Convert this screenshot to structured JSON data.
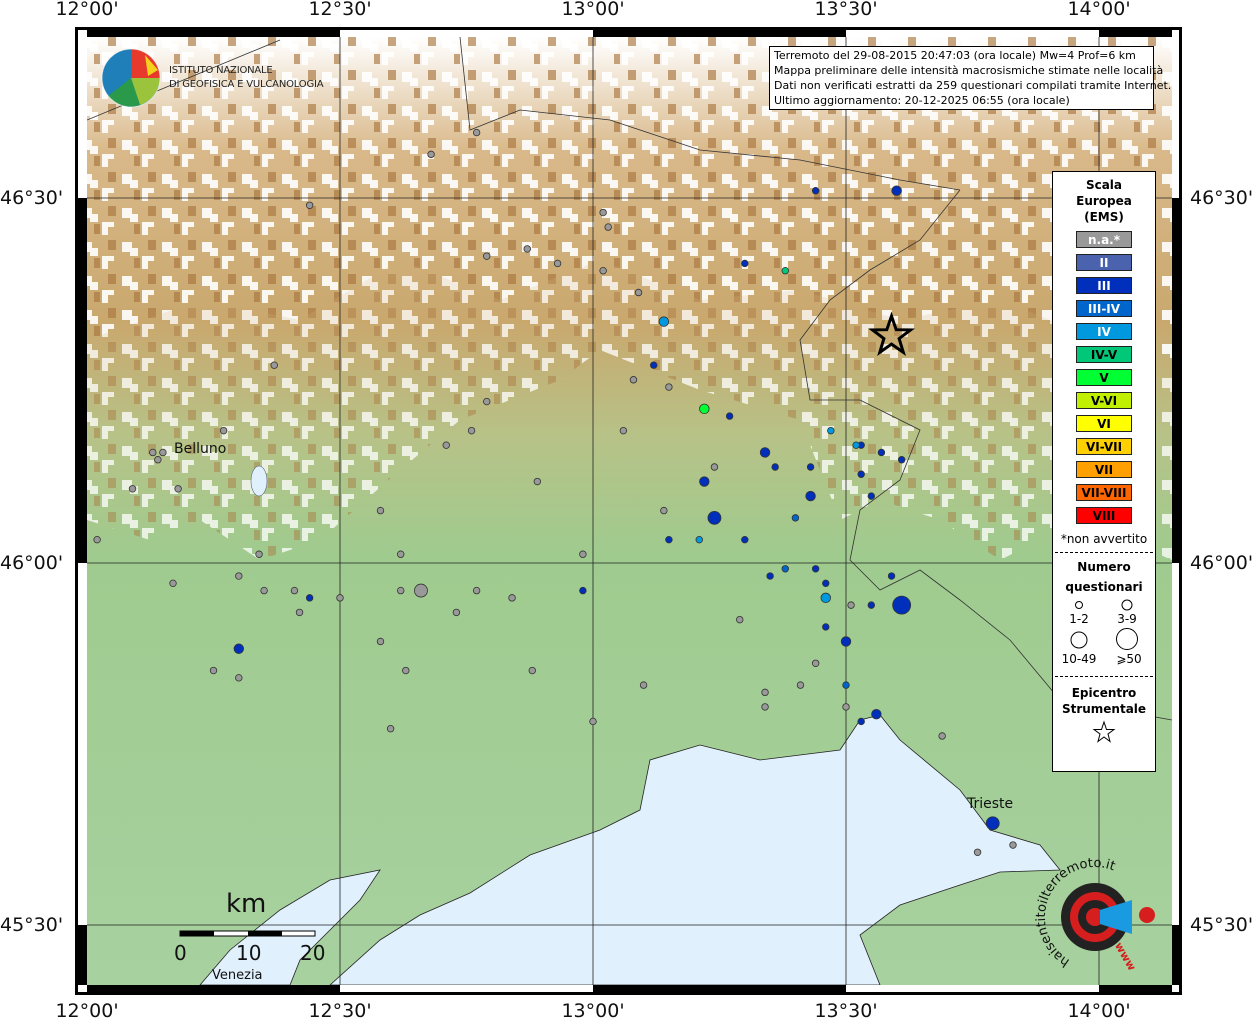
{
  "map": {
    "extent": {
      "lon": [
        12.0,
        14.14
      ],
      "lat": [
        45.42,
        46.72
      ]
    },
    "grid_lon": [
      "12°00'",
      "12°30'",
      "13°00'",
      "13°30'",
      "14°00'"
    ],
    "grid_lat": [
      "46°30'",
      "46°00'",
      "45°30'"
    ],
    "places": {
      "belluno": "Belluno",
      "trieste": "Trieste",
      "venezia": "Venezia"
    },
    "scale": {
      "unit": "km",
      "labels": [
        "0",
        "10",
        "20"
      ]
    },
    "colors": {
      "sea": "#e0f0fc",
      "plain": "#9ccc93",
      "mountain": "#c8a06a",
      "snow": "#ffffff"
    }
  },
  "logo": {
    "line1": "ISTITUTO NAZIONALE",
    "line2": "DI GEOFISICA E VULCANOLOGIA",
    "haisentito": "haisentitoilterremoto.it",
    "www": "www"
  },
  "info": {
    "line1": "Terremoto del 29-08-2015 20:47:03 (ora locale) Mw=4 Prof=6 km",
    "line2": "Mappa preliminare delle intensità macrosismiche stimate nelle località",
    "line3": "Dati non verificati estratti da 259 questionari compilati tramite Internet.",
    "line4": "Ultimo aggiornamento: 20-12-2025 06:55 (ora locale)"
  },
  "legend": {
    "title1": "Scala",
    "title2": "Europea",
    "title3": "(EMS)",
    "classes": [
      {
        "label": "n.a.*",
        "color": "#999999",
        "text": "#ffffff"
      },
      {
        "label": "II",
        "color": "#4b63ae",
        "text": "#ffffff"
      },
      {
        "label": "III",
        "color": "#0030bb",
        "text": "#ffffff"
      },
      {
        "label": "III-IV",
        "color": "#0066cc",
        "text": "#ffffff"
      },
      {
        "label": "IV",
        "color": "#0099e0",
        "text": "#ffffff"
      },
      {
        "label": "IV-V",
        "color": "#00c878",
        "text": "#000000"
      },
      {
        "label": "V",
        "color": "#00ff33",
        "text": "#000000"
      },
      {
        "label": "V-VI",
        "color": "#c0f000",
        "text": "#000000"
      },
      {
        "label": "VI",
        "color": "#ffff00",
        "text": "#000000"
      },
      {
        "label": "VI-VII",
        "color": "#ffd000",
        "text": "#000000"
      },
      {
        "label": "VII",
        "color": "#ffa000",
        "text": "#000000"
      },
      {
        "label": "VII-VIII",
        "color": "#ff6600",
        "text": "#000000"
      },
      {
        "label": "VIII",
        "color": "#ff0000",
        "text": "#000000"
      }
    ],
    "note": "*non avvertito",
    "count_title1": "Numero",
    "count_title2": "questionari",
    "sizes": [
      "1-2",
      "3-9",
      "10-49",
      "⩾50"
    ],
    "epi1": "Epicentro",
    "epi2": "Strumentale"
  },
  "epicenter": {
    "lon": 13.59,
    "lat": 46.31
  },
  "points": [
    {
      "lon": 12.77,
      "lat": 46.59,
      "i": "n.a.*",
      "s": 1
    },
    {
      "lon": 12.68,
      "lat": 46.56,
      "i": "n.a.*",
      "s": 1
    },
    {
      "lon": 12.44,
      "lat": 46.49,
      "i": "n.a.*",
      "s": 1
    },
    {
      "lon": 13.02,
      "lat": 46.48,
      "i": "n.a.*",
      "s": 1
    },
    {
      "lon": 13.03,
      "lat": 46.46,
      "i": "n.a.*",
      "s": 1
    },
    {
      "lon": 12.87,
      "lat": 46.43,
      "i": "n.a.*",
      "s": 1
    },
    {
      "lon": 12.79,
      "lat": 46.42,
      "i": "n.a.*",
      "s": 1
    },
    {
      "lon": 12.93,
      "lat": 46.41,
      "i": "n.a.*",
      "s": 1
    },
    {
      "lon": 13.02,
      "lat": 46.4,
      "i": "n.a.*",
      "s": 1
    },
    {
      "lon": 13.09,
      "lat": 46.37,
      "i": "n.a.*",
      "s": 1
    },
    {
      "lon": 12.37,
      "lat": 46.27,
      "i": "n.a.*",
      "s": 1
    },
    {
      "lon": 13.08,
      "lat": 46.25,
      "i": "n.a.*",
      "s": 1
    },
    {
      "lon": 13.15,
      "lat": 46.24,
      "i": "n.a.*",
      "s": 1
    },
    {
      "lon": 12.79,
      "lat": 46.22,
      "i": "n.a.*",
      "s": 1
    },
    {
      "lon": 12.27,
      "lat": 46.18,
      "i": "n.a.*",
      "s": 1
    },
    {
      "lon": 12.76,
      "lat": 46.18,
      "i": "n.a.*",
      "s": 1
    },
    {
      "lon": 12.71,
      "lat": 46.16,
      "i": "n.a.*",
      "s": 1
    },
    {
      "lon": 13.06,
      "lat": 46.18,
      "i": "n.a.*",
      "s": 1
    },
    {
      "lon": 12.13,
      "lat": 46.15,
      "i": "n.a.*",
      "s": 1
    },
    {
      "lon": 12.15,
      "lat": 46.15,
      "i": "n.a.*",
      "s": 1
    },
    {
      "lon": 12.14,
      "lat": 46.14,
      "i": "n.a.*",
      "s": 1
    },
    {
      "lon": 12.09,
      "lat": 46.1,
      "i": "n.a.*",
      "s": 1
    },
    {
      "lon": 12.18,
      "lat": 46.1,
      "i": "n.a.*",
      "s": 1
    },
    {
      "lon": 12.89,
      "lat": 46.11,
      "i": "n.a.*",
      "s": 1
    },
    {
      "lon": 13.24,
      "lat": 46.13,
      "i": "n.a.*",
      "s": 1
    },
    {
      "lon": 12.58,
      "lat": 46.07,
      "i": "n.a.*",
      "s": 1
    },
    {
      "lon": 13.14,
      "lat": 46.07,
      "i": "n.a.*",
      "s": 1
    },
    {
      "lon": 12.02,
      "lat": 46.03,
      "i": "n.a.*",
      "s": 1
    },
    {
      "lon": 12.34,
      "lat": 46.01,
      "i": "n.a.*",
      "s": 1
    },
    {
      "lon": 12.62,
      "lat": 46.01,
      "i": "n.a.*",
      "s": 1
    },
    {
      "lon": 12.98,
      "lat": 46.01,
      "i": "n.a.*",
      "s": 1
    },
    {
      "lon": 12.3,
      "lat": 45.98,
      "i": "n.a.*",
      "s": 1
    },
    {
      "lon": 12.17,
      "lat": 45.97,
      "i": "n.a.*",
      "s": 1
    },
    {
      "lon": 12.35,
      "lat": 45.96,
      "i": "n.a.*",
      "s": 1
    },
    {
      "lon": 12.41,
      "lat": 45.96,
      "i": "n.a.*",
      "s": 1
    },
    {
      "lon": 12.5,
      "lat": 45.95,
      "i": "n.a.*",
      "s": 1
    },
    {
      "lon": 12.62,
      "lat": 45.96,
      "i": "n.a.*",
      "s": 1
    },
    {
      "lon": 12.77,
      "lat": 45.96,
      "i": "n.a.*",
      "s": 1
    },
    {
      "lon": 12.84,
      "lat": 45.95,
      "i": "n.a.*",
      "s": 1
    },
    {
      "lon": 12.73,
      "lat": 45.93,
      "i": "n.a.*",
      "s": 1
    },
    {
      "lon": 12.42,
      "lat": 45.93,
      "i": "n.a.*",
      "s": 1
    },
    {
      "lon": 12.58,
      "lat": 45.89,
      "i": "n.a.*",
      "s": 1
    },
    {
      "lon": 12.25,
      "lat": 45.85,
      "i": "n.a.*",
      "s": 1
    },
    {
      "lon": 12.3,
      "lat": 45.84,
      "i": "n.a.*",
      "s": 1
    },
    {
      "lon": 12.88,
      "lat": 45.85,
      "i": "n.a.*",
      "s": 1
    },
    {
      "lon": 12.63,
      "lat": 45.85,
      "i": "n.a.*",
      "s": 1
    },
    {
      "lon": 13.1,
      "lat": 45.83,
      "i": "n.a.*",
      "s": 1
    },
    {
      "lon": 13.29,
      "lat": 45.92,
      "i": "n.a.*",
      "s": 1
    },
    {
      "lon": 13.51,
      "lat": 45.94,
      "i": "n.a.*",
      "s": 1
    },
    {
      "lon": 13.44,
      "lat": 45.86,
      "i": "n.a.*",
      "s": 1
    },
    {
      "lon": 13.41,
      "lat": 45.83,
      "i": "n.a.*",
      "s": 1
    },
    {
      "lon": 13.34,
      "lat": 45.82,
      "i": "n.a.*",
      "s": 1
    },
    {
      "lon": 13.34,
      "lat": 45.8,
      "i": "n.a.*",
      "s": 1
    },
    {
      "lon": 13.5,
      "lat": 45.8,
      "i": "n.a.*",
      "s": 1
    },
    {
      "lon": 13.0,
      "lat": 45.78,
      "i": "n.a.*",
      "s": 1
    },
    {
      "lon": 12.6,
      "lat": 45.77,
      "i": "n.a.*",
      "s": 1
    },
    {
      "lon": 13.69,
      "lat": 45.76,
      "i": "n.a.*",
      "s": 1
    },
    {
      "lon": 13.83,
      "lat": 45.61,
      "i": "n.a.*",
      "s": 1
    },
    {
      "lon": 13.76,
      "lat": 45.6,
      "i": "n.a.*",
      "s": 1
    },
    {
      "lon": 12.66,
      "lat": 45.96,
      "i": "n.a.*",
      "s": 3
    },
    {
      "lon": 13.44,
      "lat": 46.51,
      "i": "III",
      "s": 1
    },
    {
      "lon": 13.6,
      "lat": 46.51,
      "i": "III",
      "s": 2
    },
    {
      "lon": 13.3,
      "lat": 46.41,
      "i": "III",
      "s": 1
    },
    {
      "lon": 13.12,
      "lat": 46.27,
      "i": "III",
      "s": 1
    },
    {
      "lon": 13.27,
      "lat": 46.2,
      "i": "III",
      "s": 1
    },
    {
      "lon": 13.34,
      "lat": 46.15,
      "i": "III",
      "s": 2
    },
    {
      "lon": 13.36,
      "lat": 46.13,
      "i": "III",
      "s": 1
    },
    {
      "lon": 13.43,
      "lat": 46.13,
      "i": "III",
      "s": 1
    },
    {
      "lon": 13.22,
      "lat": 46.11,
      "i": "III",
      "s": 2
    },
    {
      "lon": 13.43,
      "lat": 46.09,
      "i": "III",
      "s": 2
    },
    {
      "lon": 13.24,
      "lat": 46.06,
      "i": "III",
      "s": 3
    },
    {
      "lon": 13.4,
      "lat": 46.06,
      "i": "III-IV",
      "s": 1
    },
    {
      "lon": 13.15,
      "lat": 46.03,
      "i": "III",
      "s": 1
    },
    {
      "lon": 13.3,
      "lat": 46.03,
      "i": "III",
      "s": 1
    },
    {
      "lon": 13.53,
      "lat": 46.16,
      "i": "III",
      "s": 1
    },
    {
      "lon": 13.57,
      "lat": 46.15,
      "i": "III",
      "s": 1
    },
    {
      "lon": 13.61,
      "lat": 46.14,
      "i": "III",
      "s": 1
    },
    {
      "lon": 13.53,
      "lat": 46.12,
      "i": "III",
      "s": 1
    },
    {
      "lon": 13.55,
      "lat": 46.09,
      "i": "III",
      "s": 1
    },
    {
      "lon": 13.44,
      "lat": 45.99,
      "i": "III",
      "s": 1
    },
    {
      "lon": 13.38,
      "lat": 45.99,
      "i": "III-IV",
      "s": 1
    },
    {
      "lon": 13.35,
      "lat": 45.98,
      "i": "III",
      "s": 1
    },
    {
      "lon": 13.46,
      "lat": 45.97,
      "i": "III",
      "s": 1
    },
    {
      "lon": 13.59,
      "lat": 45.98,
      "i": "III",
      "s": 1
    },
    {
      "lon": 13.55,
      "lat": 45.94,
      "i": "III",
      "s": 1
    },
    {
      "lon": 13.61,
      "lat": 45.94,
      "i": "III",
      "s": 4
    },
    {
      "lon": 13.46,
      "lat": 45.91,
      "i": "III",
      "s": 1
    },
    {
      "lon": 13.5,
      "lat": 45.89,
      "i": "III",
      "s": 2
    },
    {
      "lon": 13.5,
      "lat": 45.83,
      "i": "III-IV",
      "s": 1
    },
    {
      "lon": 13.56,
      "lat": 45.79,
      "i": "III",
      "s": 2
    },
    {
      "lon": 13.53,
      "lat": 45.78,
      "i": "III",
      "s": 1
    },
    {
      "lon": 12.44,
      "lat": 45.95,
      "i": "III",
      "s": 1
    },
    {
      "lon": 12.3,
      "lat": 45.88,
      "i": "III",
      "s": 2
    },
    {
      "lon": 13.79,
      "lat": 45.64,
      "i": "III",
      "s": 3
    },
    {
      "lon": 12.98,
      "lat": 45.96,
      "i": "III",
      "s": 1
    },
    {
      "lon": 13.14,
      "lat": 46.33,
      "i": "IV",
      "s": 2
    },
    {
      "lon": 13.47,
      "lat": 46.18,
      "i": "IV",
      "s": 1
    },
    {
      "lon": 13.46,
      "lat": 45.95,
      "i": "IV",
      "s": 2
    },
    {
      "lon": 13.21,
      "lat": 46.03,
      "i": "IV",
      "s": 1
    },
    {
      "lon": 13.52,
      "lat": 46.16,
      "i": "IV",
      "s": 1
    },
    {
      "lon": 13.38,
      "lat": 46.4,
      "i": "IV-V",
      "s": 1
    },
    {
      "lon": 13.22,
      "lat": 46.21,
      "i": "V",
      "s": 2
    }
  ]
}
